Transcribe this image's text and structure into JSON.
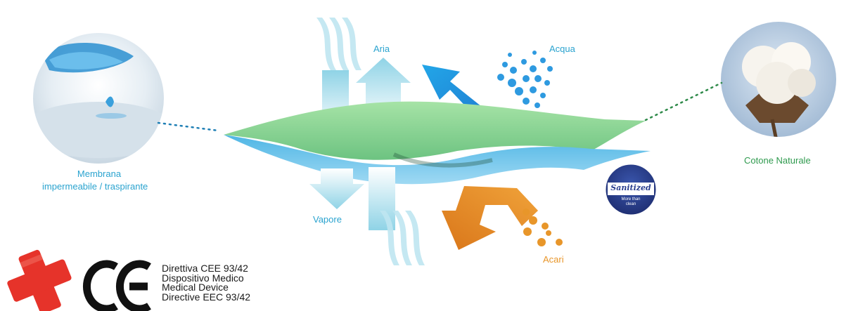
{
  "labels": {
    "membrane_line1": "Membrana",
    "membrane_line2": "impermeabile / traspirante",
    "cotton": "Cotone Naturale",
    "air": "Aria",
    "water": "Acqua",
    "vapor": "Vapore",
    "mites": "Acari"
  },
  "badge": {
    "brand": "Sanitized",
    "tagline_line1": "More than",
    "tagline_line2": "clean"
  },
  "certification": {
    "lines": [
      "Direttiva CEE 93/42",
      "Dispositivo Medico",
      "Medical Device",
      "Directive EEC 93/42"
    ]
  },
  "icons": [
    "red-cross-icon",
    "ce-mark-icon"
  ],
  "colors": {
    "blue_label": "#2aa3cf",
    "green_label": "#2f9a4e",
    "orange_label": "#e8962a",
    "fabric_green": "#86d18e",
    "fabric_blue": "#56b9e6",
    "badge_navy": "#2a3f8f"
  }
}
